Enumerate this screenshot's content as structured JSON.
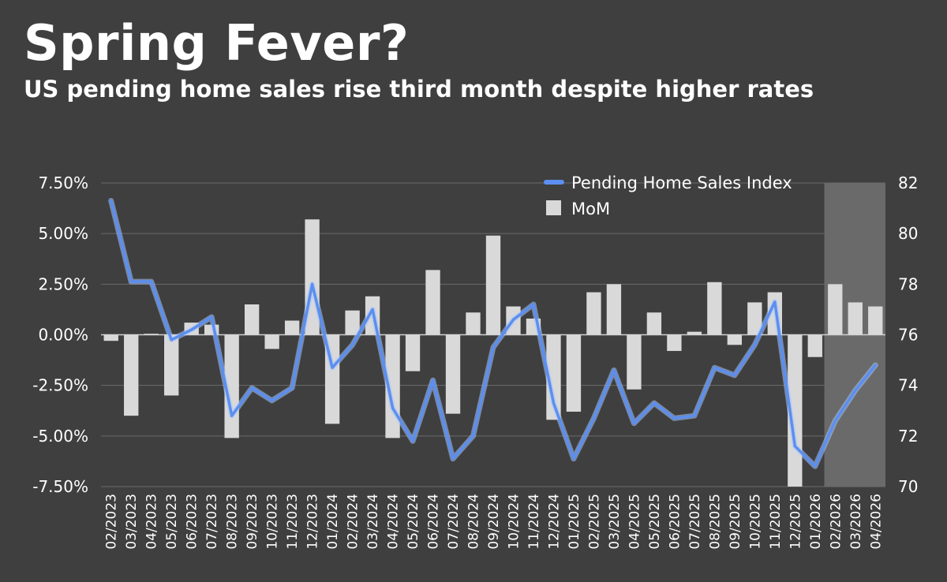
{
  "header": {
    "title": "Spring Fever?",
    "subtitle": "US pending home sales rise third month despite higher rates"
  },
  "colors": {
    "background": "#3f3f3f",
    "bar": "#d9d9d9",
    "line": "#5b8ff0",
    "line_glow": "#a9c4f7",
    "highlight": "#6a6a6a",
    "grid": "#6b6b6b"
  },
  "chart_data": {
    "type": "bar",
    "title": "",
    "xlabel": "",
    "ylabel": "",
    "categories": [
      "02/2023",
      "03/2023",
      "04/2023",
      "05/2023",
      "06/2023",
      "07/2023",
      "08/2023",
      "09/2023",
      "10/2023",
      "11/2023",
      "12/2023",
      "01/2024",
      "02/2024",
      "03/2024",
      "04/2024",
      "05/2024",
      "06/2024",
      "07/2024",
      "08/2024",
      "09/2024",
      "10/2024",
      "11/2024",
      "12/2024",
      "01/2025",
      "02/2025",
      "03/2025",
      "04/2025",
      "05/2025",
      "06/2025",
      "07/2025",
      "08/2025",
      "09/2025",
      "10/2025",
      "11/2025",
      "12/2025",
      "01/2026",
      "02/2026",
      "03/2026",
      "04/2026"
    ],
    "series": [
      {
        "name": "MoM",
        "type": "bar",
        "axis": "left",
        "values": [
          -0.3,
          -4.0,
          0.05,
          -3.0,
          0.6,
          0.5,
          -5.1,
          1.5,
          -0.7,
          0.7,
          5.7,
          -4.4,
          1.2,
          1.9,
          -5.1,
          -1.8,
          3.2,
          -3.9,
          1.1,
          4.9,
          1.4,
          0.8,
          -4.2,
          -3.8,
          2.1,
          2.5,
          -2.7,
          1.1,
          -0.8,
          0.15,
          2.6,
          -0.5,
          1.6,
          2.1,
          -7.5,
          -1.1,
          2.5,
          1.6,
          1.4
        ]
      },
      {
        "name": "Pending Home Sales Index",
        "type": "line",
        "axis": "right",
        "values": [
          81.3,
          78.1,
          78.1,
          75.8,
          76.2,
          76.7,
          72.8,
          73.9,
          73.4,
          73.9,
          78.0,
          74.7,
          75.6,
          77.0,
          73.1,
          71.8,
          74.2,
          71.1,
          72.0,
          75.5,
          76.6,
          77.2,
          73.3,
          71.1,
          72.7,
          74.6,
          72.5,
          73.3,
          72.7,
          72.8,
          74.7,
          74.4,
          75.6,
          77.3,
          71.6,
          70.8,
          72.6,
          73.8,
          74.8
        ]
      }
    ],
    "y_left": {
      "min": -7.5,
      "max": 7.5,
      "ticks": [
        "-7.50%",
        "-5.00%",
        "-2.50%",
        "0.00%",
        "2.50%",
        "5.00%",
        "7.50%"
      ]
    },
    "y_right": {
      "min": 70,
      "max": 82,
      "ticks": [
        "70",
        "72",
        "74",
        "76",
        "78",
        "80",
        "82"
      ]
    },
    "highlight_range": [
      "02/2026",
      "04/2026"
    ],
    "legend": {
      "placement": "top-right",
      "entries": [
        "Pending Home Sales Index",
        "MoM"
      ]
    },
    "grid": true
  }
}
